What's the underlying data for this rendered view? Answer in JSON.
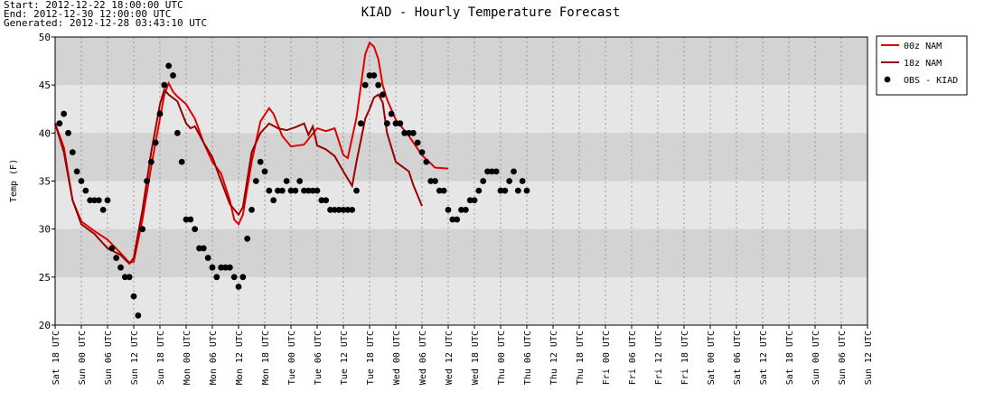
{
  "header": {
    "lines": [
      "Start: 2012-12-22 18:00:00 UTC",
      "End: 2012-12-30 12:00:00 UTC",
      "Generated: 2012-12-28 03:43:10 UTC"
    ]
  },
  "chart_data": {
    "type": "line",
    "title": "KIAD - Hourly Temperature Forecast",
    "y_label": "Temp (F)",
    "xlim": [
      0,
      186
    ],
    "ylim": [
      20,
      50
    ],
    "yticks": [
      20,
      25,
      30,
      35,
      40,
      45,
      50
    ],
    "xticks": [
      {
        "value": 0,
        "label": "Sat 18 UTC"
      },
      {
        "value": 6,
        "label": "Sun 00 UTC"
      },
      {
        "value": 12,
        "label": "Sun 06 UTC"
      },
      {
        "value": 18,
        "label": "Sun 12 UTC"
      },
      {
        "value": 24,
        "label": "Sun 18 UTC"
      },
      {
        "value": 30,
        "label": "Mon 00 UTC"
      },
      {
        "value": 36,
        "label": "Mon 06 UTC"
      },
      {
        "value": 42,
        "label": "Mon 12 UTC"
      },
      {
        "value": 48,
        "label": "Mon 18 UTC"
      },
      {
        "value": 54,
        "label": "Tue 00 UTC"
      },
      {
        "value": 60,
        "label": "Tue 06 UTC"
      },
      {
        "value": 66,
        "label": "Tue 12 UTC"
      },
      {
        "value": 72,
        "label": "Tue 18 UTC"
      },
      {
        "value": 78,
        "label": "Wed 00 UTC"
      },
      {
        "value": 84,
        "label": "Wed 06 UTC"
      },
      {
        "value": 90,
        "label": "Wed 12 UTC"
      },
      {
        "value": 96,
        "label": "Wed 18 UTC"
      },
      {
        "value": 102,
        "label": "Thu 00 UTC"
      },
      {
        "value": 108,
        "label": "Thu 06 UTC"
      },
      {
        "value": 114,
        "label": "Thu 12 UTC"
      },
      {
        "value": 120,
        "label": "Thu 18 UTC"
      },
      {
        "value": 126,
        "label": "Fri 00 UTC"
      },
      {
        "value": 132,
        "label": "Fri 06 UTC"
      },
      {
        "value": 138,
        "label": "Fri 12 UTC"
      },
      {
        "value": 144,
        "label": "Fri 18 UTC"
      },
      {
        "value": 150,
        "label": "Sat 00 UTC"
      },
      {
        "value": 156,
        "label": "Sat 06 UTC"
      },
      {
        "value": 162,
        "label": "Sat 12 UTC"
      },
      {
        "value": 168,
        "label": "Sat 18 UTC"
      },
      {
        "value": 174,
        "label": "Sun 00 UTC"
      },
      {
        "value": 180,
        "label": "Sun 06 UTC"
      },
      {
        "value": 186,
        "label": "Sun 12 UTC"
      }
    ],
    "grid": true,
    "legend": "outside-right",
    "series": [
      {
        "name": "00z NAM",
        "color": "#e00000",
        "marker": "line",
        "x": [
          0,
          2,
          4,
          6,
          9,
          12,
          15,
          17,
          18,
          20,
          22,
          24,
          25,
          26,
          27,
          28,
          30,
          32,
          34,
          36,
          38,
          40,
          41,
          42,
          43,
          45,
          47,
          49,
          50,
          52,
          54,
          57,
          60,
          62,
          64,
          66,
          67,
          69,
          71,
          72,
          73,
          74,
          75,
          76,
          78,
          81,
          84,
          87,
          90
        ],
        "values": [
          41,
          38.5,
          33,
          30.8,
          29.8,
          28.9,
          27.5,
          26.5,
          26.6,
          31,
          36.5,
          41.5,
          44,
          45.2,
          44.3,
          43.8,
          43,
          41.5,
          39,
          37,
          35.8,
          33,
          31,
          30.5,
          31.5,
          37,
          41.2,
          42.6,
          42,
          39.7,
          38.6,
          38.8,
          40.5,
          40.2,
          40.5,
          37.7,
          37.4,
          41.6,
          48.2,
          49.4,
          49,
          47.7,
          45,
          43.5,
          41.4,
          39.7,
          37.7,
          36.4,
          36.3
        ]
      },
      {
        "name": "18z NAM",
        "color": "#990000",
        "marker": "line",
        "x": [
          0,
          2,
          4,
          6,
          9,
          12,
          15,
          17,
          18,
          20,
          22,
          24,
          25,
          26,
          28,
          30,
          31,
          32,
          34,
          36,
          38,
          40,
          42,
          43,
          45,
          47,
          49,
          51,
          53,
          55,
          57,
          58,
          59,
          60,
          62,
          64,
          66,
          68,
          69,
          71,
          72,
          73,
          74,
          75,
          76,
          78,
          81,
          82,
          84
        ],
        "values": [
          41,
          38,
          33,
          30.5,
          29.5,
          28,
          27.3,
          26.4,
          27,
          32,
          38,
          43,
          44.5,
          44,
          43.3,
          41,
          40.5,
          40.7,
          39,
          37.5,
          35,
          32.6,
          31.5,
          32.3,
          38,
          40,
          41,
          40.5,
          40.3,
          40.6,
          41,
          39.8,
          40.7,
          38.7,
          38.3,
          37.6,
          36,
          34.5,
          37,
          41.5,
          42.5,
          43.7,
          44,
          43.2,
          40,
          37,
          36,
          34.6,
          32.4
        ]
      },
      {
        "name": "OBS - KIAD",
        "color": "#000000",
        "marker": "circle",
        "x": [
          1,
          2,
          3,
          4,
          5,
          6,
          7,
          8,
          9,
          10,
          11,
          12,
          13,
          14,
          15,
          16,
          17,
          18,
          19,
          20,
          21,
          22,
          23,
          24,
          25,
          26,
          27,
          28,
          29,
          30,
          31,
          32,
          33,
          34,
          35,
          36,
          37,
          38,
          39,
          40,
          41,
          42,
          43,
          44,
          45,
          46,
          47,
          48,
          49,
          50,
          51,
          52,
          53,
          54,
          55,
          56,
          57,
          58,
          59,
          60,
          61,
          62,
          63,
          64,
          65,
          66,
          67,
          68,
          69,
          70,
          71,
          72,
          73,
          74,
          75,
          76,
          77,
          78,
          79,
          80,
          81,
          82,
          83,
          84,
          85,
          86,
          87,
          88,
          89,
          90,
          91,
          92,
          93,
          94,
          95,
          96,
          97,
          98,
          99,
          100,
          101,
          102,
          103,
          104,
          105,
          106,
          107,
          108
        ],
        "values": [
          41,
          42,
          40,
          38,
          36,
          35,
          34,
          33,
          33,
          33,
          32,
          33,
          28,
          27,
          26,
          25,
          25,
          23,
          21,
          30,
          35,
          37,
          39,
          42,
          45,
          47,
          46,
          40,
          37,
          31,
          31,
          30,
          28,
          28,
          27,
          26,
          25,
          26,
          26,
          26,
          25,
          24,
          25,
          29,
          32,
          35,
          37,
          36,
          34,
          33,
          34,
          34,
          35,
          34,
          34,
          35,
          34,
          34,
          34,
          34,
          33,
          33,
          32,
          32,
          32,
          32,
          32,
          32,
          34,
          41,
          45,
          46,
          46,
          45,
          44,
          41,
          42,
          41,
          41,
          40,
          40,
          40,
          39,
          38,
          37,
          35,
          35,
          34,
          34,
          32,
          31,
          31,
          32,
          32,
          33,
          33,
          34,
          35,
          36,
          36,
          36,
          34,
          34,
          35,
          36,
          34,
          35,
          34
        ]
      }
    ]
  }
}
